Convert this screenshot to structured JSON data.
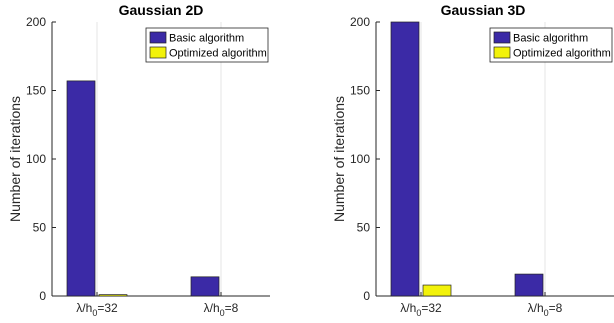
{
  "chart_data": [
    {
      "type": "bar",
      "title": "Gaussian 2D",
      "xlabel": "",
      "ylabel": "Number of iterations",
      "ylim": [
        0,
        200
      ],
      "yticks": [
        0,
        50,
        100,
        150,
        200
      ],
      "categories": [
        {
          "base": "λ/h",
          "sub": "0",
          "suffix": "=32"
        },
        {
          "base": "λ/h",
          "sub": "0",
          "suffix": "=8"
        }
      ],
      "series": [
        {
          "name": "Basic algorithm",
          "color": "#3b2aa6",
          "values": [
            157,
            14
          ]
        },
        {
          "name": "Optimized algorithm",
          "color": "#f2f20a",
          "values": [
            1,
            0
          ]
        }
      ],
      "legend_position": "top-right",
      "grid": "x"
    },
    {
      "type": "bar",
      "title": "Gaussian 3D",
      "xlabel": "",
      "ylabel": "Number of iterations",
      "ylim": [
        0,
        200
      ],
      "yticks": [
        0,
        50,
        100,
        150,
        200
      ],
      "categories": [
        {
          "base": "λ/h",
          "sub": "0",
          "suffix": "=32"
        },
        {
          "base": "λ/h",
          "sub": "0",
          "suffix": "=8"
        }
      ],
      "series": [
        {
          "name": "Basic algorithm",
          "color": "#3b2aa6",
          "values": [
            200,
            16
          ]
        },
        {
          "name": "Optimized algorithm",
          "color": "#f2f20a",
          "values": [
            8,
            0
          ]
        }
      ],
      "legend_position": "top-right",
      "grid": "x"
    }
  ]
}
